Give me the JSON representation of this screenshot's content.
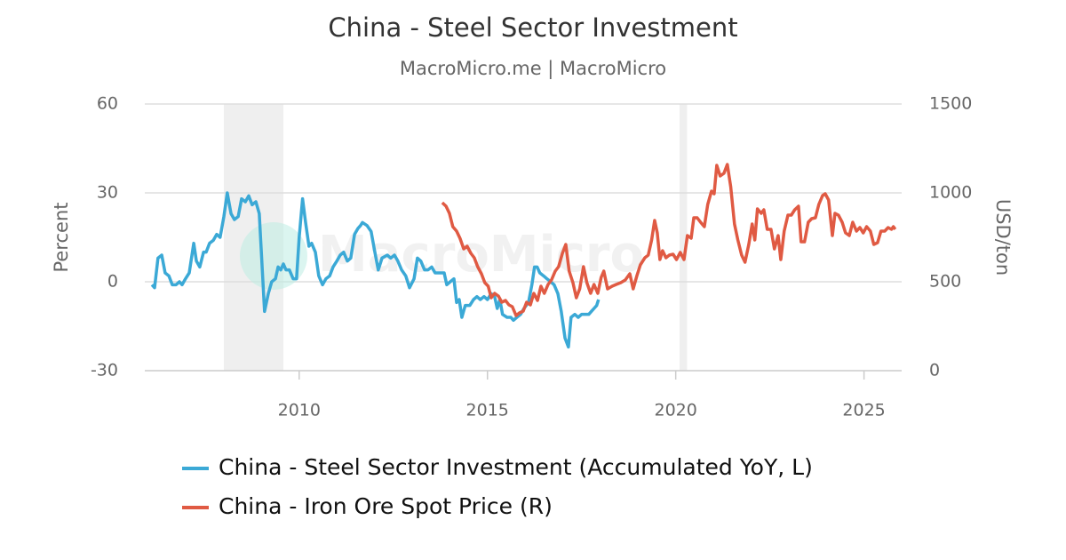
{
  "chart_data": {
    "type": "line",
    "title": "China - Steel Sector Investment",
    "subtitle": "MacroMicro.me | MacroMicro",
    "watermark": "MacroMicro",
    "y_label": "Percent",
    "y2_label": "USD/ton",
    "xlim": [
      2005.9,
      2026.0
    ],
    "xticks": [
      2010,
      2015,
      2020,
      2025
    ],
    "ylim": [
      -30,
      60
    ],
    "yticks": [
      -30,
      0,
      30,
      60
    ],
    "y2lim": [
      0,
      1500
    ],
    "y2ticks": [
      0,
      500,
      1000,
      1500
    ],
    "grid": true,
    "shaded_ranges": [
      [
        2008.0,
        2009.58
      ],
      [
        2020.1,
        2020.3
      ]
    ],
    "series": [
      {
        "name": "China - Steel Sector Investment (Accumulated YoY, L)",
        "color": "#3ba9d6",
        "axis": "y",
        "x": [
          2006.09,
          2006.16,
          2006.25,
          2006.35,
          2006.44,
          2006.54,
          2006.63,
          2006.73,
          2006.82,
          2006.89,
          2006.98,
          2007.08,
          2007.2,
          2007.27,
          2007.36,
          2007.46,
          2007.53,
          2007.62,
          2007.72,
          2007.81,
          2007.9,
          2008.0,
          2008.09,
          2008.19,
          2008.28,
          2008.38,
          2008.47,
          2008.57,
          2008.66,
          2008.75,
          2008.85,
          2008.94,
          2009.08,
          2009.18,
          2009.27,
          2009.37,
          2009.44,
          2009.51,
          2009.58,
          2009.65,
          2009.74,
          2009.84,
          2009.93,
          2010.0,
          2010.09,
          2010.17,
          2010.26,
          2010.33,
          2010.43,
          2010.52,
          2010.62,
          2010.71,
          2010.81,
          2010.9,
          2011.0,
          2011.09,
          2011.18,
          2011.28,
          2011.37,
          2011.47,
          2011.56,
          2011.63,
          2011.68,
          2011.8,
          2011.91,
          2012.01,
          2012.1,
          2012.2,
          2012.34,
          2012.43,
          2012.53,
          2012.62,
          2012.72,
          2012.83,
          2012.93,
          2013.05,
          2013.14,
          2013.23,
          2013.33,
          2013.42,
          2013.52,
          2013.61,
          2013.73,
          2013.85,
          2013.92,
          2014.01,
          2014.11,
          2014.18,
          2014.25,
          2014.32,
          2014.41,
          2014.53,
          2014.63,
          2014.72,
          2014.81,
          2014.91,
          2015.0,
          2015.1,
          2015.19,
          2015.26,
          2015.33,
          2015.4,
          2015.52,
          2015.62,
          2015.69,
          2015.78,
          2015.88,
          2015.97,
          2016.09,
          2016.18,
          2016.25,
          2016.32,
          2016.39,
          2016.49,
          2016.58,
          2016.68,
          2016.77,
          2016.87,
          2016.96,
          2017.06,
          2017.15,
          2017.22,
          2017.32,
          2017.41,
          2017.5,
          2017.6,
          2017.69,
          2017.76,
          2017.83,
          2017.9,
          2017.95
        ],
        "values": [
          -1,
          -2,
          8,
          9,
          3,
          2,
          -1,
          -1,
          0,
          -1,
          1,
          3,
          13,
          7,
          5,
          10,
          10,
          13,
          14,
          16,
          15,
          22,
          30,
          23,
          21,
          22,
          28,
          27,
          29,
          26,
          27,
          23,
          -10,
          -4,
          0,
          1,
          5,
          4,
          6,
          4,
          4,
          1,
          1,
          15,
          28,
          20,
          12,
          13,
          10,
          2,
          -1,
          1,
          2,
          5,
          7,
          9,
          10,
          7,
          8,
          16,
          18,
          19,
          20,
          19,
          17,
          10,
          4,
          8,
          9,
          8,
          9,
          7,
          4,
          2,
          -2,
          1,
          8,
          7,
          4,
          4,
          5,
          3,
          3,
          3,
          -1,
          0,
          1,
          -7,
          -6,
          -12,
          -8,
          -8,
          -6,
          -5,
          -6,
          -5,
          -6,
          -4,
          -5,
          -9,
          -6,
          -11,
          -12,
          -12,
          -13,
          -12,
          -11,
          -9,
          -7,
          -1,
          5,
          5,
          3,
          2,
          1,
          0,
          -1,
          -4,
          -10,
          -19,
          -22,
          -12,
          -11,
          -12,
          -11,
          -11,
          -11,
          -10,
          -9,
          -8,
          -6
        ]
      },
      {
        "name": "China - Iron Ore Spot Price (R)",
        "color": "#e05a43",
        "axis": "y2",
        "x": [
          2013.8,
          2013.9,
          2013.99,
          2014.08,
          2014.18,
          2014.27,
          2014.37,
          2014.46,
          2014.56,
          2014.65,
          2014.74,
          2014.84,
          2014.93,
          2015.02,
          2015.1,
          2015.19,
          2015.29,
          2015.38,
          2015.48,
          2015.57,
          2015.66,
          2015.76,
          2015.85,
          2015.95,
          2016.04,
          2016.14,
          2016.23,
          2016.33,
          2016.42,
          2016.51,
          2016.61,
          2016.7,
          2016.8,
          2016.89,
          2016.99,
          2017.08,
          2017.17,
          2017.27,
          2017.36,
          2017.45,
          2017.55,
          2017.64,
          2017.74,
          2017.83,
          2017.93,
          2018.02,
          2018.09,
          2018.19,
          2018.31,
          2018.42,
          2018.54,
          2018.66,
          2018.78,
          2018.87,
          2018.97,
          2019.06,
          2019.18,
          2019.27,
          2019.36,
          2019.44,
          2019.51,
          2019.58,
          2019.65,
          2019.74,
          2019.83,
          2019.93,
          2020.02,
          2020.12,
          2020.22,
          2020.31,
          2020.41,
          2020.48,
          2020.57,
          2020.66,
          2020.76,
          2020.85,
          2020.95,
          2021.02,
          2021.09,
          2021.18,
          2021.28,
          2021.37,
          2021.46,
          2021.56,
          2021.65,
          2021.75,
          2021.84,
          2021.94,
          2022.03,
          2022.1,
          2022.17,
          2022.27,
          2022.34,
          2022.43,
          2022.53,
          2022.62,
          2022.72,
          2022.79,
          2022.88,
          2022.98,
          2023.07,
          2023.16,
          2023.26,
          2023.33,
          2023.42,
          2023.52,
          2023.61,
          2023.71,
          2023.8,
          2023.9,
          2023.97,
          2024.06,
          2024.16,
          2024.23,
          2024.32,
          2024.42,
          2024.51,
          2024.61,
          2024.7,
          2024.8,
          2024.89,
          2024.98,
          2025.07,
          2025.17,
          2025.26,
          2025.36,
          2025.45,
          2025.55,
          2025.64,
          2025.73,
          2025.78,
          2025.83
        ],
        "values": [
          945,
          925,
          885,
          810,
          785,
          745,
          685,
          700,
          660,
          635,
          585,
          545,
          495,
          475,
          410,
          435,
          420,
          385,
          395,
          370,
          360,
          310,
          325,
          335,
          385,
          370,
          435,
          395,
          475,
          435,
          485,
          510,
          560,
          585,
          660,
          710,
          560,
          495,
          410,
          460,
          585,
          495,
          435,
          485,
          435,
          525,
          560,
          460,
          475,
          485,
          495,
          510,
          545,
          460,
          535,
          595,
          635,
          650,
          735,
          845,
          775,
          625,
          675,
          635,
          650,
          655,
          625,
          665,
          625,
          760,
          745,
          860,
          860,
          835,
          810,
          935,
          1010,
          995,
          1155,
          1095,
          1110,
          1160,
          1035,
          825,
          735,
          650,
          610,
          710,
          825,
          735,
          910,
          885,
          905,
          795,
          795,
          685,
          760,
          625,
          785,
          875,
          875,
          905,
          925,
          725,
          725,
          835,
          855,
          860,
          935,
          985,
          995,
          960,
          760,
          885,
          875,
          835,
          775,
          760,
          835,
          785,
          805,
          775,
          810,
          785,
          710,
          720,
          785,
          785,
          805,
          795,
          810,
          795
        ]
      }
    ]
  }
}
